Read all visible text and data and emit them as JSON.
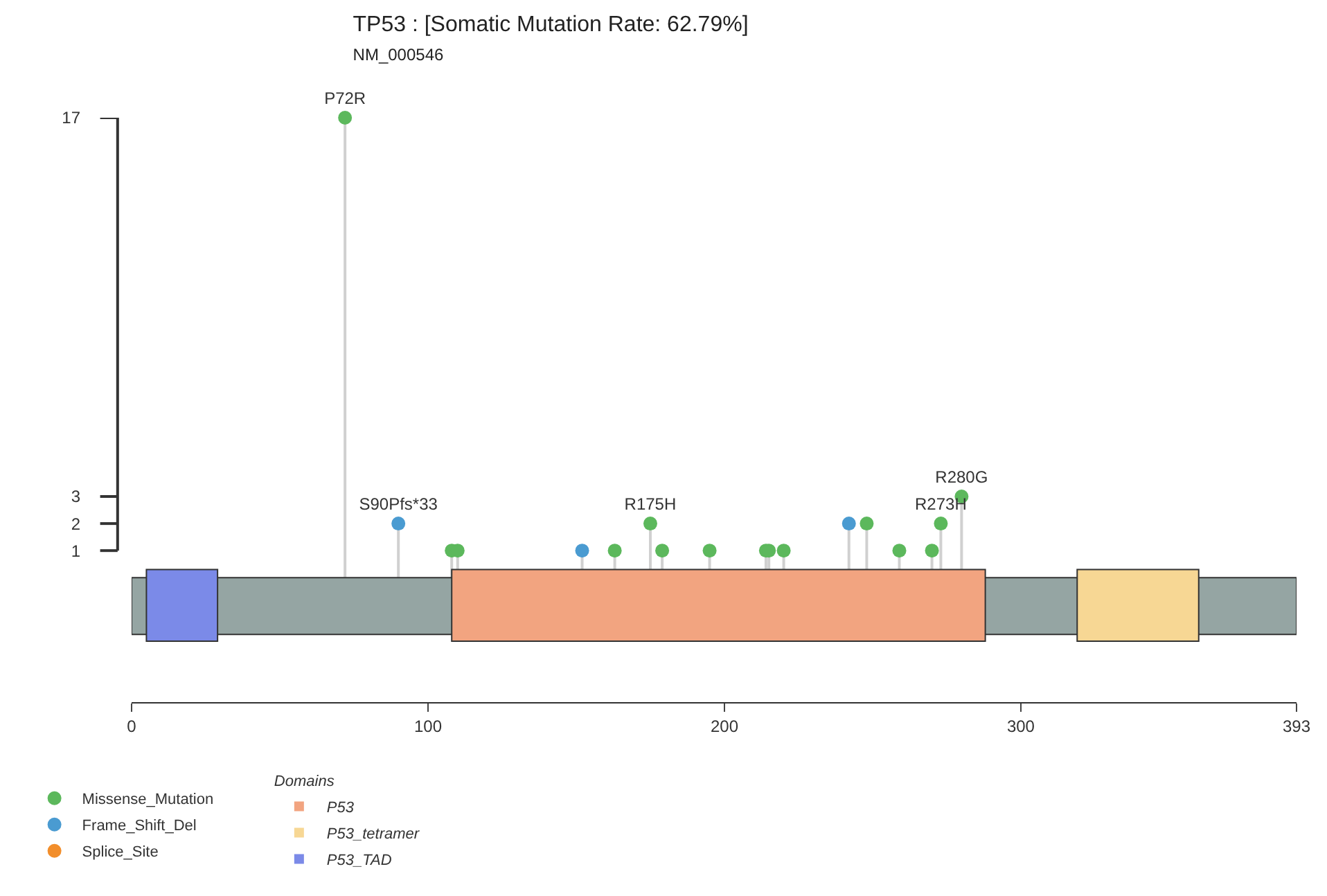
{
  "chart_data": {
    "type": "lollipop",
    "title": "TP53 : [Somatic Mutation Rate: 62.79%]",
    "subtitle": "NM_000546",
    "series": [
      {
        "name": "Missense_Mutation",
        "color": "#5cb85c",
        "x": [
          72,
          108,
          110,
          163,
          175,
          179,
          195,
          214,
          215,
          220,
          248,
          259,
          270,
          273,
          280
        ],
        "values": [
          17,
          1,
          1,
          1,
          2,
          1,
          1,
          1,
          1,
          1,
          2,
          1,
          1,
          2,
          3
        ],
        "value_labels": [
          "P72R",
          null,
          null,
          null,
          "R175H",
          null,
          null,
          null,
          null,
          null,
          null,
          null,
          null,
          "R273H",
          "R280G"
        ]
      },
      {
        "name": "Frame_Shift_Del",
        "color": "#4a9bd1",
        "x": [
          90,
          152,
          242
        ],
        "values": [
          2,
          1,
          2
        ],
        "value_labels": [
          "S90Pfs*33",
          null,
          null
        ]
      },
      {
        "name": "Splice_Site",
        "color": "#f28e2b"
      }
    ],
    "bands": [
      {
        "axis": "x",
        "from": 0,
        "to": 393,
        "color": "#95a5a3"
      },
      {
        "axis": "x",
        "from": 108,
        "to": 288,
        "label": "P53",
        "color": "#f2a480"
      },
      {
        "axis": "x",
        "from": 319,
        "to": 360,
        "label": "P53_tetramer",
        "color": "#f7d794"
      },
      {
        "axis": "x",
        "from": 5,
        "to": 29,
        "label": "P53_TAD",
        "color": "#7b8ae8"
      }
    ],
    "legend_title": "Domains",
    "xlim": [
      0,
      393
    ],
    "xticks": [
      0,
      100,
      200,
      300,
      393
    ],
    "ylim": [
      -4.6,
      17
    ],
    "yticks": [
      1,
      2,
      3,
      17
    ],
    "legend": "bottom left",
    "marker": "circle"
  }
}
